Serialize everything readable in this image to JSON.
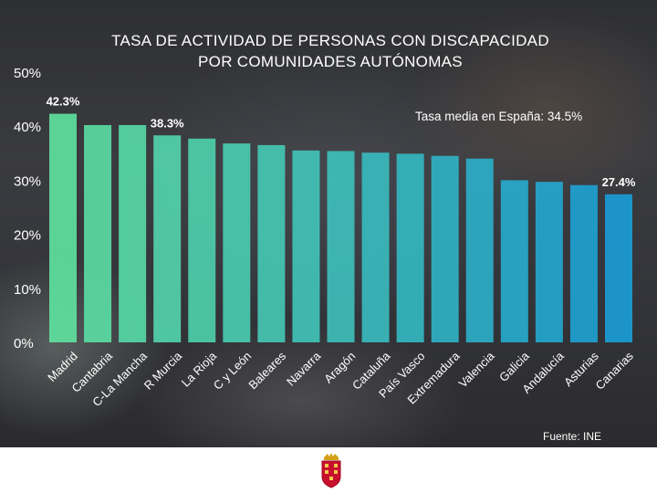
{
  "chart_data": {
    "type": "bar",
    "title_lines": [
      "TASA DE ACTIVIDAD DE PERSONAS CON DISCAPACIDAD",
      "POR COMUNIDADES AUTÓNOMAS"
    ],
    "categories": [
      "Madrid",
      "Cantabria",
      "C-La Mancha",
      "R Murcia",
      "La Rioja",
      "C y León",
      "Baleares",
      "Navarra",
      "Aragón",
      "Cataluña",
      "País Vasco",
      "Extremadura",
      "Valencia",
      "Galicia",
      "Andalucía",
      "Asturias",
      "Canarias"
    ],
    "values": [
      42.3,
      40.2,
      40.2,
      38.3,
      37.7,
      36.8,
      36.5,
      35.5,
      35.4,
      35.1,
      34.9,
      34.5,
      34.0,
      30.0,
      29.7,
      29.1,
      27.4
    ],
    "data_labels": [
      {
        "index": 0,
        "text": "42.3%"
      },
      {
        "index": 3,
        "text": "38.3%"
      },
      {
        "index": 16,
        "text": "27.4%"
      }
    ],
    "y_ticks": [
      "0%",
      "10%",
      "20%",
      "30%",
      "40%",
      "50%"
    ],
    "ylim": [
      0,
      50
    ],
    "xlabel": "",
    "ylabel": "",
    "grid": false,
    "legend": "none",
    "annotation": "Tasa media en España: 34.5%",
    "source": "Fuente: INE",
    "colors": {
      "start": "#5fe3a0",
      "end": "#1a9fd8",
      "text": "#ffffff"
    }
  }
}
